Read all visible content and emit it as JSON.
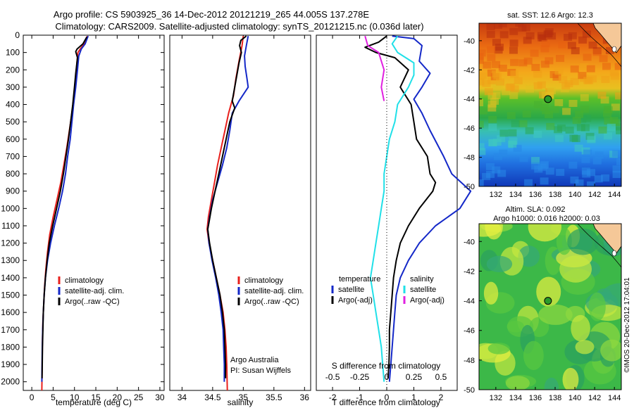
{
  "header": {
    "line1": "Argo profile: CS 5903925_36 14-Dec-2012 20121219_265 44.005S 137.278E",
    "line2": "Climatology: CARS2009. Satellite-adjusted climatology: synTS_20121215.nc (0.036d later)"
  },
  "side_stamp": "©IMOS 20-Dec-2012 17:04:01",
  "colors": {
    "climatology": "#e8201c",
    "satellite": "#1428c8",
    "argo": "#000000",
    "salt_satellite": "#20e0e8",
    "salt_argo": "#e020e0"
  },
  "chart_data": [
    {
      "type": "line",
      "xlabel": "temperature (deg C)",
      "ylabel": "",
      "xlim": [
        -2,
        31
      ],
      "ylim": [
        2050,
        0
      ],
      "xticks": [
        0,
        5,
        10,
        15,
        20,
        25,
        30
      ],
      "yticks": [
        0,
        100,
        200,
        300,
        400,
        500,
        600,
        700,
        800,
        900,
        1000,
        1100,
        1200,
        1300,
        1400,
        1500,
        1600,
        1700,
        1800,
        1900,
        2000
      ],
      "legend": [
        "climatology",
        "satellite-adj. clim.",
        "Argo(..raw -QC)"
      ],
      "series": [
        {
          "name": "climatology",
          "color": "#e8201c",
          "points": [
            [
              13.0,
              5
            ],
            [
              12.6,
              40
            ],
            [
              11.5,
              75
            ],
            [
              10.8,
              100
            ],
            [
              10.6,
              150
            ],
            [
              10.3,
              250
            ],
            [
              9.9,
              350
            ],
            [
              9.4,
              450
            ],
            [
              8.8,
              550
            ],
            [
              8.2,
              650
            ],
            [
              7.5,
              750
            ],
            [
              6.8,
              850
            ],
            [
              5.9,
              950
            ],
            [
              5.0,
              1050
            ],
            [
              4.2,
              1150
            ],
            [
              3.7,
              1250
            ],
            [
              3.3,
              1350
            ],
            [
              3.0,
              1450
            ],
            [
              2.8,
              1550
            ],
            [
              2.6,
              1650
            ],
            [
              2.5,
              1750
            ],
            [
              2.45,
              1850
            ],
            [
              2.4,
              1950
            ],
            [
              2.35,
              2050
            ]
          ]
        },
        {
          "name": "satellite-adj. clim.",
          "color": "#1428c8",
          "points": [
            [
              13.2,
              5
            ],
            [
              12.5,
              50
            ],
            [
              11.6,
              80
            ],
            [
              11.0,
              120
            ],
            [
              10.7,
              200
            ],
            [
              10.3,
              300
            ],
            [
              9.8,
              400
            ],
            [
              9.4,
              500
            ],
            [
              9.0,
              600
            ],
            [
              8.4,
              700
            ],
            [
              7.9,
              800
            ],
            [
              7.2,
              900
            ],
            [
              6.3,
              1000
            ],
            [
              5.3,
              1100
            ],
            [
              4.4,
              1200
            ],
            [
              3.7,
              1300
            ],
            [
              3.2,
              1400
            ],
            [
              2.9,
              1500
            ],
            [
              2.7,
              1600
            ],
            [
              2.55,
              1700
            ],
            [
              2.45,
              1800
            ],
            [
              2.4,
              1900
            ],
            [
              2.35,
              2000
            ]
          ]
        },
        {
          "name": "Argo(..raw -QC)",
          "color": "#000000",
          "points": [
            [
              12.9,
              10
            ],
            [
              12.0,
              50
            ],
            [
              10.6,
              80
            ],
            [
              10.3,
              95
            ],
            [
              10.7,
              130
            ],
            [
              10.3,
              220
            ],
            [
              10.0,
              300
            ],
            [
              9.6,
              400
            ],
            [
              9.1,
              500
            ],
            [
              8.6,
              600
            ],
            [
              8.0,
              700
            ],
            [
              7.4,
              800
            ],
            [
              6.7,
              900
            ],
            [
              5.8,
              1000
            ],
            [
              4.9,
              1100
            ],
            [
              4.1,
              1200
            ],
            [
              3.6,
              1300
            ],
            [
              3.2,
              1400
            ],
            [
              2.9,
              1500
            ],
            [
              2.7,
              1600
            ],
            [
              2.6,
              1700
            ],
            [
              2.5,
              1800
            ],
            [
              2.45,
              1900
            ],
            [
              2.4,
              1980
            ]
          ]
        }
      ]
    },
    {
      "type": "line",
      "xlabel": "salinity",
      "ylabel": "",
      "xlim": [
        33.8,
        36.1
      ],
      "ylim": [
        2050,
        0
      ],
      "xticks": [
        34,
        34.5,
        35,
        35.5,
        36
      ],
      "legend": [
        "climatology",
        "satellite-adj. clim.",
        "Argo(..raw -QC)"
      ],
      "annotations": [
        "Argo Australia",
        "PI: Susan Wijffels"
      ],
      "series": [
        {
          "name": "climatology",
          "color": "#e8201c",
          "points": [
            [
              35.0,
              5
            ],
            [
              34.98,
              60
            ],
            [
              34.93,
              150
            ],
            [
              34.88,
              250
            ],
            [
              34.84,
              350
            ],
            [
              34.76,
              450
            ],
            [
              34.7,
              550
            ],
            [
              34.64,
              650
            ],
            [
              34.58,
              750
            ],
            [
              34.53,
              850
            ],
            [
              34.48,
              950
            ],
            [
              34.43,
              1050
            ],
            [
              34.41,
              1120
            ],
            [
              34.44,
              1200
            ],
            [
              34.5,
              1300
            ],
            [
              34.56,
              1400
            ],
            [
              34.62,
              1500
            ],
            [
              34.67,
              1600
            ],
            [
              34.7,
              1700
            ],
            [
              34.72,
              1800
            ],
            [
              34.73,
              1900
            ],
            [
              34.74,
              2050
            ]
          ]
        },
        {
          "name": "satellite-adj. clim.",
          "color": "#1428c8",
          "points": [
            [
              35.08,
              5
            ],
            [
              35.05,
              60
            ],
            [
              35.02,
              120
            ],
            [
              35.03,
              180
            ],
            [
              35.06,
              250
            ],
            [
              35.08,
              300
            ],
            [
              34.93,
              380
            ],
            [
              34.82,
              450
            ],
            [
              34.78,
              550
            ],
            [
              34.73,
              650
            ],
            [
              34.66,
              750
            ],
            [
              34.58,
              850
            ],
            [
              34.5,
              950
            ],
            [
              34.45,
              1050
            ],
            [
              34.42,
              1120
            ],
            [
              34.44,
              1200
            ],
            [
              34.49,
              1300
            ],
            [
              34.55,
              1400
            ],
            [
              34.6,
              1500
            ],
            [
              34.64,
              1600
            ],
            [
              34.67,
              1700
            ],
            [
              34.68,
              1800
            ],
            [
              34.69,
              1900
            ],
            [
              34.69,
              2000
            ]
          ]
        },
        {
          "name": "Argo(..raw -QC)",
          "color": "#000000",
          "points": [
            [
              35.05,
              5
            ],
            [
              34.96,
              30
            ],
            [
              34.94,
              60
            ],
            [
              34.97,
              100
            ],
            [
              34.93,
              160
            ],
            [
              34.9,
              220
            ],
            [
              34.86,
              300
            ],
            [
              34.82,
              380
            ],
            [
              34.86,
              420
            ],
            [
              34.78,
              500
            ],
            [
              34.72,
              600
            ],
            [
              34.66,
              700
            ],
            [
              34.6,
              800
            ],
            [
              34.54,
              900
            ],
            [
              34.48,
              1000
            ],
            [
              34.44,
              1080
            ],
            [
              34.42,
              1120
            ],
            [
              34.45,
              1200
            ],
            [
              34.5,
              1300
            ],
            [
              34.56,
              1400
            ],
            [
              34.62,
              1500
            ],
            [
              34.66,
              1600
            ],
            [
              34.69,
              1700
            ],
            [
              34.7,
              1800
            ],
            [
              34.71,
              1900
            ],
            [
              34.71,
              1980
            ]
          ]
        }
      ]
    },
    {
      "type": "line",
      "xlabel": "T difference from climatology",
      "top_xlabel": "S difference from climatology",
      "ylabel": "",
      "xlim": [
        -2.6,
        2.6
      ],
      "ylim": [
        2050,
        0
      ],
      "xticks": [
        -2,
        -1,
        0,
        1,
        2
      ],
      "top_xticks": [
        -0.5,
        -0.25,
        0,
        0.25,
        0.5
      ],
      "top_xtick_labels": [
        "-0.5",
        "-0.25",
        "0",
        "0.25",
        "0.5"
      ],
      "legend_titles": [
        "temperature",
        "salinity"
      ],
      "legend": [
        "satellite",
        "Argo(-adj)",
        "satellite",
        "Argo(-adj)"
      ],
      "series": [
        {
          "name": "satellite",
          "group": "temperature",
          "color": "#1428c8",
          "points": [
            [
              0.2,
              5
            ],
            [
              1.0,
              20
            ],
            [
              1.3,
              60
            ],
            [
              1.2,
              150
            ],
            [
              1.6,
              220
            ],
            [
              1.3,
              300
            ],
            [
              1.0,
              370
            ],
            [
              1.3,
              450
            ],
            [
              1.6,
              550
            ],
            [
              2.1,
              700
            ],
            [
              2.4,
              800
            ],
            [
              3.1,
              900
            ],
            [
              2.7,
              1000
            ],
            [
              1.8,
              1100
            ],
            [
              1.2,
              1200
            ],
            [
              0.8,
              1300
            ],
            [
              0.5,
              1400
            ],
            [
              0.35,
              1500
            ],
            [
              0.3,
              1600
            ],
            [
              0.25,
              1700
            ],
            [
              0.2,
              1800
            ],
            [
              0.15,
              1900
            ],
            [
              0.1,
              2000
            ]
          ]
        },
        {
          "name": "Argo(-adj)",
          "group": "temperature",
          "color": "#000000",
          "points": [
            [
              0.0,
              5
            ],
            [
              -0.3,
              40
            ],
            [
              -0.8,
              70
            ],
            [
              -0.4,
              100
            ],
            [
              0.3,
              130
            ],
            [
              0.8,
              200
            ],
            [
              0.5,
              300
            ],
            [
              0.9,
              400
            ],
            [
              1.0,
              500
            ],
            [
              1.1,
              600
            ],
            [
              1.5,
              700
            ],
            [
              1.6,
              800
            ],
            [
              1.8,
              850
            ],
            [
              1.7,
              900
            ],
            [
              1.2,
              1000
            ],
            [
              0.8,
              1100
            ],
            [
              0.5,
              1200
            ],
            [
              0.35,
              1300
            ],
            [
              0.25,
              1400
            ],
            [
              0.2,
              1500
            ],
            [
              0.15,
              1600
            ],
            [
              0.1,
              1700
            ],
            [
              0.1,
              1800
            ],
            [
              0.08,
              1900
            ],
            [
              0.05,
              1980
            ]
          ]
        },
        {
          "name": "satellite",
          "group": "salinity",
          "color": "#20e0e8",
          "points": [
            [
              0.4,
              5
            ],
            [
              0.2,
              50
            ],
            [
              0.4,
              100
            ],
            [
              1.0,
              160
            ],
            [
              1.0,
              230
            ],
            [
              0.8,
              300
            ],
            [
              0.4,
              400
            ],
            [
              0.3,
              500
            ],
            [
              0.1,
              600
            ],
            [
              0.0,
              700
            ],
            [
              -0.1,
              800
            ],
            [
              -0.1,
              900
            ],
            [
              -0.2,
              1000
            ],
            [
              -0.3,
              1100
            ],
            [
              -0.4,
              1200
            ],
            [
              -0.5,
              1300
            ],
            [
              -0.6,
              1400
            ],
            [
              -0.5,
              1500
            ],
            [
              -0.4,
              1600
            ],
            [
              -0.3,
              1700
            ],
            [
              -0.2,
              1800
            ],
            [
              -0.15,
              1900
            ],
            [
              -0.1,
              2000
            ]
          ]
        },
        {
          "name": "Argo(-adj)",
          "group": "salinity",
          "color": "#e020e0",
          "points": [
            [
              -0.8,
              5
            ],
            [
              -0.7,
              60
            ],
            [
              -0.3,
              100
            ],
            [
              -0.1,
              200
            ],
            [
              -0.2,
              300
            ],
            [
              -0.1,
              380
            ]
          ]
        }
      ]
    },
    {
      "type": "heatmap",
      "title": "sat. SST: 12.6 Argo: 12.3",
      "x_ticks": [
        132,
        134,
        136,
        138,
        140,
        142,
        144
      ],
      "y_ticks": [
        -40,
        -42,
        -44,
        -46,
        -48,
        -50
      ],
      "xlim": [
        130.3,
        144.7
      ],
      "ylim": [
        -50,
        -38.8
      ],
      "marker": [
        137.278,
        -44.005
      ]
    },
    {
      "type": "heatmap",
      "title_line1": "Altim. SLA: 0.092",
      "title_line2": "Argo h1000: 0.016 h2000: 0.03",
      "x_ticks": [
        132,
        134,
        136,
        138,
        140,
        142,
        144
      ],
      "y_ticks": [
        -40,
        -42,
        -44,
        -46,
        -48,
        -50
      ],
      "xlim": [
        130.3,
        144.7
      ],
      "ylim": [
        -50,
        -38.8
      ],
      "marker": [
        137.278,
        -44.005
      ]
    }
  ]
}
